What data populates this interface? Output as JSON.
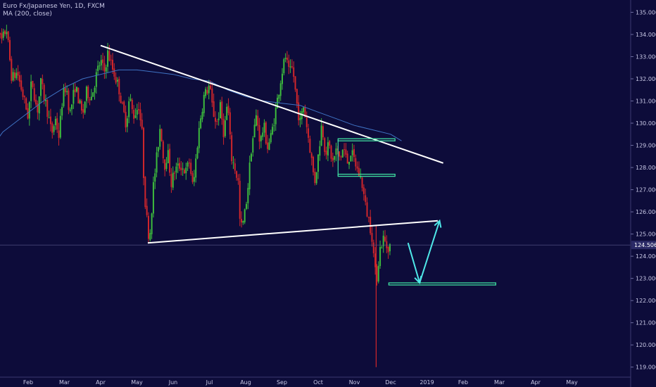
{
  "legend": {
    "symbol_line": "Euro Fx/Japanese Yen, 1D, FXCM",
    "indicator_line": "MA (200, close)"
  },
  "colors": {
    "background": "#0d0c3a",
    "bull": "#3dbb3d",
    "bear": "#d0262b",
    "ma": "#3f73c4",
    "trendline": "#ffffff",
    "zone": "#3fdfa0",
    "arrow": "#4fe8e8",
    "axis_text": "#c9c9e6",
    "price_badge": "#2b2a66"
  },
  "chart_data": {
    "type": "candlestick",
    "instrument": "Euro Fx/Japanese Yen",
    "timeframe": "1D",
    "source": "FXCM",
    "ylim": [
      118.8,
      135.3
    ],
    "y_ticks": [
      119.0,
      120.0,
      121.0,
      122.0,
      123.0,
      124.0,
      125.0,
      126.0,
      127.0,
      128.0,
      129.0,
      130.0,
      131.0,
      132.0,
      133.0,
      134.0,
      135.0
    ],
    "y_tick_labels": [
      "119.000",
      "120.000",
      "121.000",
      "122.000",
      "123.000",
      "124.000",
      "125.000",
      "126.000",
      "127.000",
      "128.000",
      "129.000",
      "130.000",
      "131.000",
      "132.000",
      "133.000",
      "134.000",
      "135.000"
    ],
    "x_tick_labels": [
      "Feb",
      "Mar",
      "Apr",
      "May",
      "Jun",
      "Jul",
      "Aug",
      "Sep",
      "Oct",
      "Nov",
      "Dec",
      "2019",
      "Feb",
      "Mar",
      "Apr",
      "May"
    ],
    "x_tick_pos": [
      1,
      2,
      3,
      4,
      5,
      6,
      7,
      8,
      9,
      10,
      11,
      12,
      13,
      14,
      15,
      16
    ],
    "last_price": 124.506,
    "last_price_label": "124.506",
    "price_path": [
      [
        0.0,
        134.5
      ],
      [
        0.1,
        135.0
      ],
      [
        0.25,
        133.6
      ],
      [
        0.4,
        134.3
      ],
      [
        0.55,
        132.0
      ],
      [
        0.7,
        132.3
      ],
      [
        0.85,
        131.3
      ],
      [
        1.0,
        130.3
      ],
      [
        1.1,
        132.0
      ],
      [
        1.25,
        130.5
      ],
      [
        1.35,
        131.8
      ],
      [
        1.5,
        130.8
      ],
      [
        1.65,
        129.5
      ],
      [
        1.75,
        130.2
      ],
      [
        1.85,
        129.4
      ],
      [
        1.95,
        131.2
      ],
      [
        2.05,
        131.7
      ],
      [
        2.15,
        130.4
      ],
      [
        2.3,
        131.7
      ],
      [
        2.4,
        131.0
      ],
      [
        2.5,
        130.3
      ],
      [
        2.6,
        131.4
      ],
      [
        2.75,
        131.2
      ],
      [
        2.9,
        132.3
      ],
      [
        3.0,
        132.8
      ],
      [
        3.1,
        132.3
      ],
      [
        3.2,
        133.2
      ],
      [
        3.3,
        132.6
      ],
      [
        3.4,
        132.1
      ],
      [
        3.5,
        131.6
      ],
      [
        3.6,
        130.7
      ],
      [
        3.7,
        130.0
      ],
      [
        3.8,
        131.2
      ],
      [
        3.9,
        130.3
      ],
      [
        4.05,
        130.8
      ],
      [
        4.15,
        129.4
      ],
      [
        4.2,
        127.0
      ],
      [
        4.3,
        125.2
      ],
      [
        4.35,
        124.8
      ],
      [
        4.45,
        127.1
      ],
      [
        4.55,
        128.5
      ],
      [
        4.65,
        130.0
      ],
      [
        4.75,
        128.0
      ],
      [
        4.85,
        128.7
      ],
      [
        4.95,
        127.3
      ],
      [
        5.05,
        127.9
      ],
      [
        5.2,
        128.1
      ],
      [
        5.35,
        127.8
      ],
      [
        5.45,
        128.3
      ],
      [
        5.55,
        127.0
      ],
      [
        5.65,
        128.8
      ],
      [
        5.75,
        130.2
      ],
      [
        5.85,
        131.2
      ],
      [
        6.0,
        131.7
      ],
      [
        6.1,
        130.5
      ],
      [
        6.2,
        130.0
      ],
      [
        6.3,
        130.7
      ],
      [
        6.4,
        129.5
      ],
      [
        6.5,
        131.0
      ],
      [
        6.6,
        128.5
      ],
      [
        6.7,
        128.0
      ],
      [
        6.8,
        127.3
      ],
      [
        6.85,
        125.2
      ],
      [
        6.95,
        125.6
      ],
      [
        7.05,
        126.9
      ],
      [
        7.15,
        128.8
      ],
      [
        7.3,
        130.4
      ],
      [
        7.4,
        129.1
      ],
      [
        7.5,
        129.9
      ],
      [
        7.6,
        128.9
      ],
      [
        7.7,
        129.4
      ],
      [
        7.8,
        130.3
      ],
      [
        7.9,
        131.3
      ],
      [
        8.0,
        132.3
      ],
      [
        8.1,
        133.0
      ],
      [
        8.2,
        132.2
      ],
      [
        8.3,
        132.5
      ],
      [
        8.4,
        131.0
      ],
      [
        8.5,
        130.0
      ],
      [
        8.6,
        130.8
      ],
      [
        8.7,
        129.7
      ],
      [
        8.8,
        128.6
      ],
      [
        8.9,
        127.3
      ],
      [
        9.0,
        128.5
      ],
      [
        9.1,
        130.0
      ],
      [
        9.2,
        128.7
      ],
      [
        9.3,
        129.0
      ],
      [
        9.4,
        128.2
      ],
      [
        9.5,
        128.8
      ],
      [
        9.6,
        128.4
      ],
      [
        9.7,
        128.9
      ],
      [
        9.8,
        128.2
      ],
      [
        9.9,
        128.7
      ],
      [
        10.0,
        128.3
      ],
      [
        10.1,
        127.8
      ],
      [
        10.2,
        127.4
      ],
      [
        10.3,
        126.3
      ],
      [
        10.4,
        125.6
      ],
      [
        10.48,
        125.0
      ],
      [
        10.55,
        123.7
      ],
      [
        10.6,
        122.8
      ],
      [
        10.7,
        124.3
      ],
      [
        10.8,
        124.8
      ],
      [
        10.9,
        124.4
      ],
      [
        11.0,
        124.5
      ]
    ],
    "flash_wick": {
      "x": 10.6,
      "high": 125.4,
      "low": 119.0
    },
    "moving_average": {
      "name": "MA (200, close)",
      "points": [
        [
          0.0,
          128.9
        ],
        [
          0.3,
          129.6
        ],
        [
          0.7,
          130.1
        ],
        [
          1.1,
          130.6
        ],
        [
          1.5,
          131.1
        ],
        [
          2.0,
          131.6
        ],
        [
          2.5,
          132.0
        ],
        [
          3.0,
          132.2
        ],
        [
          3.5,
          132.4
        ],
        [
          4.0,
          132.4
        ],
        [
          4.5,
          132.3
        ],
        [
          5.0,
          132.2
        ],
        [
          5.5,
          132.0
        ],
        [
          6.0,
          131.9
        ],
        [
          6.5,
          131.5
        ],
        [
          7.0,
          131.2
        ],
        [
          7.5,
          131.0
        ],
        [
          8.0,
          130.9
        ],
        [
          8.5,
          130.8
        ],
        [
          9.0,
          130.5
        ],
        [
          9.5,
          130.2
        ],
        [
          10.0,
          129.9
        ],
        [
          10.5,
          129.7
        ],
        [
          11.0,
          129.5
        ],
        [
          11.3,
          129.2
        ]
      ]
    },
    "trendlines": [
      {
        "name": "upper-descending-trendline",
        "from": [
          3.0,
          133.5
        ],
        "to": [
          12.45,
          128.2
        ]
      },
      {
        "name": "lower-ascending-trendline",
        "from": [
          4.3,
          124.6
        ],
        "to": [
          12.3,
          125.6
        ]
      }
    ],
    "zones": [
      {
        "name": "range-top-zone",
        "x": [
          9.55,
          11.12
        ],
        "y": 129.25
      },
      {
        "name": "range-bottom-zone",
        "x": [
          9.55,
          11.12
        ],
        "y": 127.65
      },
      {
        "name": "support-zone",
        "x": [
          10.95,
          13.9
        ],
        "y": 122.75
      }
    ],
    "projection": [
      [
        11.48,
        124.6
      ],
      [
        11.8,
        122.8
      ],
      [
        12.35,
        125.6
      ]
    ],
    "drawing": {
      "x_min": -0.05,
      "x_max": 16.5,
      "start_date_offset_note": ""
    }
  }
}
